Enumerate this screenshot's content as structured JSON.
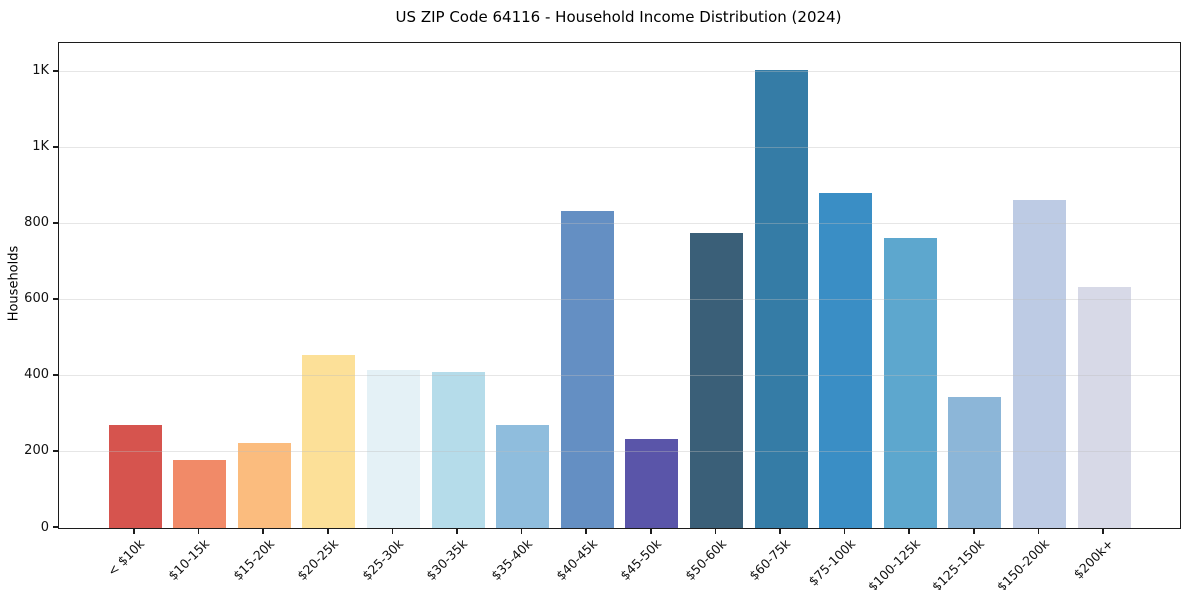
{
  "chart_data": {
    "type": "bar",
    "title": "US ZIP Code 64116 - Household Income Distribution (2024)",
    "xlabel": "",
    "ylabel": "Households",
    "categories": [
      "< $10k",
      "$10-15k",
      "$15-20k",
      "$20-25k",
      "$25-30k",
      "$30-35k",
      "$35-40k",
      "$40-45k",
      "$45-50k",
      "$50-60k",
      "$60-75k",
      "$75-100k",
      "$100-125k",
      "$125-150k",
      "$150-200k",
      "$200k+"
    ],
    "values": [
      270,
      178,
      223,
      455,
      417,
      410,
      270,
      833,
      235,
      776,
      1205,
      881,
      762,
      346,
      864,
      633
    ],
    "bar_colors": [
      "#d6544e",
      "#f18a68",
      "#fbbc7e",
      "#fce098",
      "#e4f1f6",
      "#b5dcea",
      "#8fbddd",
      "#648fc3",
      "#5a55a9",
      "#3a5f78",
      "#357ca6",
      "#3a8ec5",
      "#5da7ce",
      "#8cb6d8",
      "#bdcbe4",
      "#d7d9e7"
    ],
    "yticks": [
      {
        "value": 0,
        "label": "0"
      },
      {
        "value": 200,
        "label": "200"
      },
      {
        "value": 400,
        "label": "400"
      },
      {
        "value": 600,
        "label": "600"
      },
      {
        "value": 800,
        "label": "800"
      },
      {
        "value": 1000,
        "label": "1K"
      },
      {
        "value": 1200,
        "label": "1K"
      }
    ],
    "ylim": [
      0,
      1276
    ],
    "grid": "horizontal",
    "legend": "none",
    "frame_color": "#1c1c1c",
    "background_color": "#ffffff"
  }
}
